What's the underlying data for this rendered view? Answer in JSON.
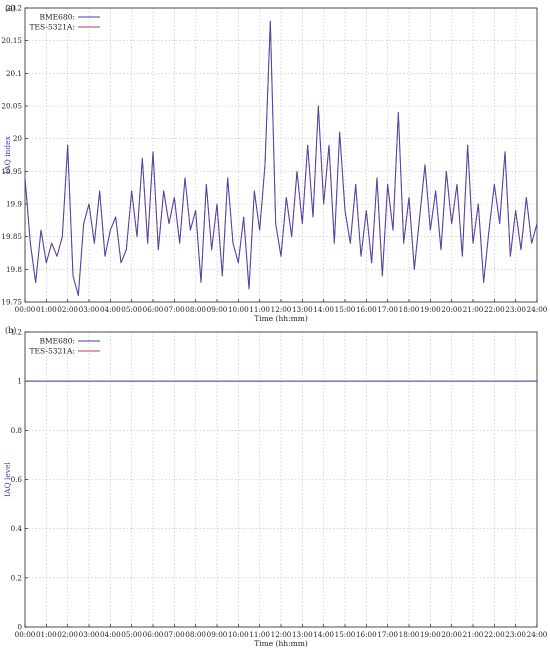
{
  "chart_data": [
    {
      "panel_label": "(a)",
      "type": "line",
      "xlabel": "Time (hh:mm)",
      "ylabel": "IAQ index",
      "ylim": [
        19.75,
        20.2
      ],
      "xlim": [
        0,
        24
      ],
      "grid": true,
      "legend_position": "top-left",
      "x_ticks": [
        "00:00",
        "01:00",
        "02:00",
        "03:00",
        "04:00",
        "05:00",
        "06:00",
        "07:00",
        "08:00",
        "09:00",
        "10:00",
        "11:00",
        "12:00",
        "13:00",
        "14:00",
        "15:00",
        "16:00",
        "17:00",
        "18:00",
        "19:00",
        "20:00",
        "21:00",
        "22:00",
        "23:00",
        "24:00"
      ],
      "y_ticks": [
        "19.75",
        "19.8",
        "19.85",
        "19.9",
        "19.95",
        "20",
        "20.05",
        "20.1",
        "20.15",
        "20.2"
      ],
      "x_hours": [
        0,
        0.25,
        0.5,
        0.75,
        1,
        1.25,
        1.5,
        1.75,
        2,
        2.25,
        2.5,
        2.75,
        3,
        3.25,
        3.5,
        3.75,
        4,
        4.25,
        4.5,
        4.75,
        5,
        5.25,
        5.5,
        5.75,
        6,
        6.25,
        6.5,
        6.75,
        7,
        7.25,
        7.5,
        7.75,
        8,
        8.25,
        8.5,
        8.75,
        9,
        9.25,
        9.5,
        9.75,
        10,
        10.25,
        10.5,
        10.75,
        11,
        11.25,
        11.5,
        11.75,
        12,
        12.25,
        12.5,
        12.75,
        13,
        13.25,
        13.5,
        13.75,
        14,
        14.25,
        14.5,
        14.75,
        15,
        15.25,
        15.5,
        15.75,
        16,
        16.25,
        16.5,
        16.75,
        17,
        17.25,
        17.5,
        17.75,
        18,
        18.25,
        18.5,
        18.75,
        19,
        19.25,
        19.5,
        19.75,
        20,
        20.25,
        20.5,
        20.75,
        21,
        21.25,
        21.5,
        21.75,
        22,
        22.25,
        22.5,
        22.75,
        23,
        23.25,
        23.5,
        23.75,
        24
      ],
      "series": [
        {
          "name": "BME680:",
          "color": "#3b3fb3",
          "values": [
            19.94,
            19.84,
            19.78,
            19.86,
            19.81,
            19.84,
            19.82,
            19.85,
            19.99,
            19.79,
            19.76,
            19.87,
            19.9,
            19.84,
            19.92,
            19.82,
            19.86,
            19.88,
            19.81,
            19.83,
            19.92,
            19.85,
            19.97,
            19.84,
            19.98,
            19.83,
            19.92,
            19.87,
            19.91,
            19.84,
            19.94,
            19.86,
            19.89,
            19.78,
            19.93,
            19.83,
            19.9,
            19.79,
            19.94,
            19.84,
            19.81,
            19.88,
            19.77,
            19.92,
            19.86,
            19.96,
            20.18,
            19.87,
            19.82,
            19.91,
            19.85,
            19.95,
            19.87,
            19.99,
            19.88,
            20.05,
            19.9,
            19.99,
            19.84,
            20.01,
            19.89,
            19.84,
            19.93,
            19.82,
            19.89,
            19.81,
            19.94,
            19.79,
            19.93,
            19.86,
            20.04,
            19.84,
            19.91,
            19.8,
            19.88,
            19.96,
            19.86,
            19.92,
            19.83,
            19.95,
            19.87,
            19.93,
            19.82,
            19.99,
            19.84,
            19.9,
            19.78,
            19.86,
            19.93,
            19.87,
            19.98,
            19.82,
            19.89,
            19.83,
            19.91,
            19.84,
            19.87
          ]
        },
        {
          "name": "TES-5321A:",
          "color": "#c4386a",
          "values": [
            19.94,
            19.84,
            19.78,
            19.86,
            19.81,
            19.84,
            19.82,
            19.85,
            19.99,
            19.79,
            19.76,
            19.87,
            19.9,
            19.84,
            19.92,
            19.82,
            19.86,
            19.88,
            19.81,
            19.83,
            19.92,
            19.85,
            19.97,
            19.84,
            19.98,
            19.83,
            19.92,
            19.87,
            19.91,
            19.84,
            19.94,
            19.86,
            19.89,
            19.78,
            19.93,
            19.83,
            19.9,
            19.79,
            19.94,
            19.84,
            19.81,
            19.88,
            19.77,
            19.92,
            19.86,
            19.96,
            20.18,
            19.87,
            19.82,
            19.91,
            19.85,
            19.95,
            19.87,
            19.99,
            19.88,
            20.05,
            19.9,
            19.99,
            19.84,
            20.01,
            19.89,
            19.84,
            19.93,
            19.82,
            19.89,
            19.81,
            19.94,
            19.79,
            19.93,
            19.86,
            20.04,
            19.84,
            19.91,
            19.8,
            19.88,
            19.96,
            19.86,
            19.92,
            19.83,
            19.95,
            19.87,
            19.93,
            19.82,
            19.99,
            19.84,
            19.9,
            19.78,
            19.86,
            19.93,
            19.87,
            19.98,
            19.82,
            19.89,
            19.83,
            19.91,
            19.84,
            19.87
          ]
        }
      ]
    },
    {
      "panel_label": "(b)",
      "type": "line",
      "xlabel": "Time (hh:mm)",
      "ylabel": "IAQ level",
      "ylim": [
        0,
        1.2
      ],
      "xlim": [
        0,
        24
      ],
      "grid": true,
      "legend_position": "top-left",
      "x_ticks": [
        "00:00",
        "01:00",
        "02:00",
        "03:00",
        "04:00",
        "05:00",
        "06:00",
        "07:00",
        "08:00",
        "09:00",
        "10:00",
        "11:00",
        "12:00",
        "13:00",
        "14:00",
        "15:00",
        "16:00",
        "17:00",
        "18:00",
        "19:00",
        "20:00",
        "21:00",
        "22:00",
        "23:00",
        "24:00"
      ],
      "y_ticks": [
        "0",
        "0.2",
        "0.4",
        "0.6",
        "0.8",
        "1",
        "1.2"
      ],
      "x_hours": [
        0,
        24
      ],
      "series": [
        {
          "name": "BME680:",
          "color": "#3b3fb3",
          "values": [
            1,
            1
          ]
        },
        {
          "name": "TES-5321A:",
          "color": "#c4386a",
          "values": [
            1,
            1
          ]
        }
      ]
    }
  ]
}
